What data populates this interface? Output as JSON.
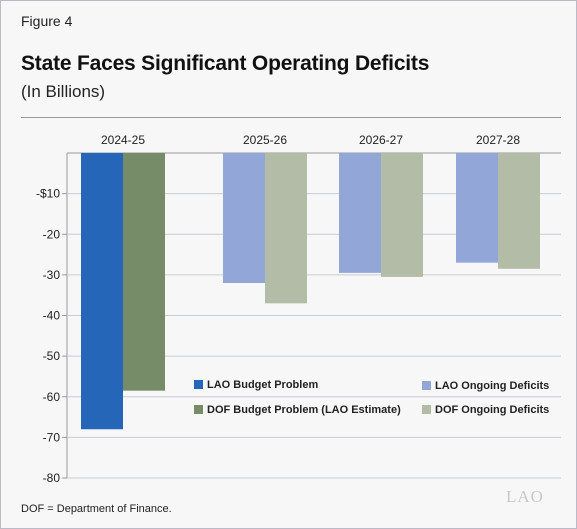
{
  "figure_label": "Figure 4",
  "title": "State Faces Significant Operating Deficits",
  "subtitle": "(In Billions)",
  "footnote": "DOF = Department of Finance.",
  "logo_text": "LAO",
  "colors": {
    "lao_budget": "#2566b9",
    "dof_budget": "#768b67",
    "lao_ongoing": "#93a6d8",
    "dof_ongoing": "#b2bca6",
    "background": "#f7f7f7",
    "grid": "#c9ccd2"
  },
  "legend": [
    {
      "label": "LAO Budget Problem",
      "color": "#2566b9"
    },
    {
      "label": "DOF Budget Problem (LAO Estimate)",
      "color": "#768b67"
    },
    {
      "label": "LAO Ongoing Deficits",
      "color": "#93a6d8"
    },
    {
      "label": "DOF Ongoing Deficits",
      "color": "#b2bca6"
    }
  ],
  "chart_data": {
    "type": "bar",
    "title": "State Faces Significant Operating Deficits",
    "subtitle": "(In Billions)",
    "categories": [
      "2024-25",
      "2025-26",
      "2026-27",
      "2027-28"
    ],
    "series": [
      {
        "name": "LAO Budget Problem",
        "values": [
          -68,
          null,
          null,
          null
        ]
      },
      {
        "name": "DOF Budget Problem (LAO Estimate)",
        "values": [
          -58.5,
          null,
          null,
          null
        ]
      },
      {
        "name": "LAO Ongoing Deficits",
        "values": [
          null,
          -32,
          -29.5,
          -27
        ]
      },
      {
        "name": "DOF Ongoing Deficits",
        "values": [
          null,
          -37,
          -30.5,
          -28.5
        ]
      }
    ],
    "y_ticks": [
      {
        "value": -10,
        "label": "-$10"
      },
      {
        "value": -20,
        "label": "-20"
      },
      {
        "value": -30,
        "label": "-30"
      },
      {
        "value": -40,
        "label": "-40"
      },
      {
        "value": -50,
        "label": "-50"
      },
      {
        "value": -60,
        "label": "-60"
      },
      {
        "value": -70,
        "label": "-70"
      },
      {
        "value": -80,
        "label": "-80"
      }
    ],
    "ylim": [
      -80,
      0
    ],
    "xlabel": "",
    "ylabel": "",
    "grid": true,
    "category_axis_position": "top",
    "legend_position": "bottom-right"
  }
}
